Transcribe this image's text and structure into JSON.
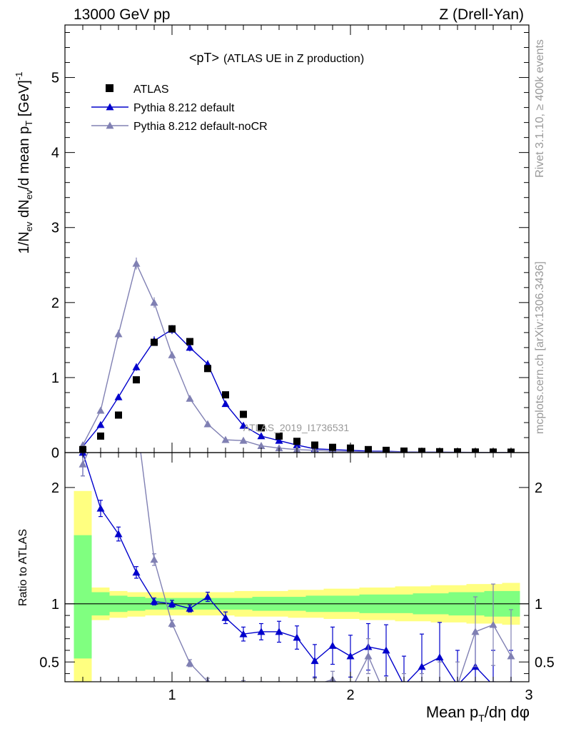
{
  "header": {
    "left": "13000 GeV pp",
    "right": "Z (Drell-Yan)"
  },
  "side_labels": {
    "rivet": "Rivet 3.1.10, ≥ 400k events",
    "mcplots": "mcplots.cern.ch [arXiv:1306.3436]"
  },
  "chart_data": {
    "type": "scatter",
    "title": "<pT>",
    "subtitle": "(ATLAS UE in Z production)",
    "watermark": "ATLAS_2019_I1736531",
    "xlabel": "Mean p_T/dη dφ",
    "ylabel": "1/N_ev dN_ev/d mean p_T [GeV]^-1",
    "ratio_ylabel": "Ratio to ATLAS",
    "xlim": [
      0.4,
      3.0
    ],
    "ylim": [
      0,
      5.7
    ],
    "ratio_ylim": [
      0.33,
      2.3
    ],
    "x_ticks": [
      {
        "value": 1,
        "label": "1"
      },
      {
        "value": 2,
        "label": "2"
      },
      {
        "value": 3,
        "label": "3"
      }
    ],
    "y_ticks": [
      {
        "value": 0,
        "label": "0"
      },
      {
        "value": 1,
        "label": "1"
      },
      {
        "value": 2,
        "label": "2"
      },
      {
        "value": 3,
        "label": "3"
      },
      {
        "value": 4,
        "label": "4"
      },
      {
        "value": 5,
        "label": "5"
      }
    ],
    "ratio_ticks": [
      {
        "value": 0.5,
        "label": "0.5"
      },
      {
        "value": 1,
        "label": "1"
      },
      {
        "value": 2,
        "label": "2"
      }
    ],
    "legend": [
      {
        "name": "ATLAS",
        "color": "#000000",
        "marker": "square"
      },
      {
        "name": "Pythia 8.212 default",
        "color": "#0000cc",
        "marker": "triangle"
      },
      {
        "name": "Pythia 8.212 default-noCR",
        "color": "#8080b3",
        "marker": "triangle"
      }
    ],
    "x": [
      0.5,
      0.6,
      0.7,
      0.8,
      0.9,
      1.0,
      1.1,
      1.2,
      1.3,
      1.4,
      1.5,
      1.6,
      1.7,
      1.8,
      1.9,
      2.0,
      2.1,
      2.2,
      2.3,
      2.4,
      2.5,
      2.6,
      2.7,
      2.8,
      2.9
    ],
    "bin_edges": [
      0.45,
      0.55,
      0.65,
      0.75,
      0.85,
      0.95,
      1.05,
      1.15,
      1.25,
      1.35,
      1.45,
      1.55,
      1.65,
      1.75,
      1.85,
      1.95,
      2.05,
      2.15,
      2.25,
      2.35,
      2.45,
      2.55,
      2.65,
      2.75,
      2.85,
      2.95
    ],
    "data": {
      "name": "ATLAS",
      "values": [
        0.04,
        0.22,
        0.5,
        0.97,
        1.47,
        1.65,
        1.48,
        1.12,
        0.77,
        0.51,
        0.33,
        0.22,
        0.15,
        0.1,
        0.07,
        0.06,
        0.04,
        0.03,
        0.02,
        0.015,
        0.012,
        0.01,
        0.008,
        0.007,
        0.006
      ]
    },
    "series": [
      {
        "name": "Pythia 8.212 default",
        "color": "#0000cc",
        "values": [
          0.08,
          0.37,
          0.74,
          1.14,
          1.49,
          1.64,
          1.4,
          1.18,
          0.65,
          0.36,
          0.22,
          0.16,
          0.1,
          0.05,
          0.04,
          0.03,
          0.02,
          0.018,
          0.01,
          0.008,
          0.006,
          0.004,
          0.003,
          0.002,
          0.002
        ],
        "errors": [
          0.01,
          0.03,
          0.04,
          0.05,
          0.06,
          0.06,
          0.05,
          0.05,
          0.04,
          0.03,
          0.02,
          0.02,
          0.02,
          0.01,
          0.01,
          0.01,
          0.01,
          0.01,
          0.01,
          0.005,
          0.005,
          0.004,
          0.003,
          0.002,
          0.002
        ],
        "ratio": [
          2.3,
          1.82,
          1.6,
          1.27,
          1.02,
          1.0,
          0.96,
          1.06,
          0.88,
          0.74,
          0.76,
          0.76,
          0.71,
          0.51,
          0.64,
          0.55,
          0.63,
          0.6,
          0.3,
          0.46,
          0.54,
          0.3,
          0.46,
          0.3,
          0.3
        ],
        "ratio_errors": [
          0.2,
          0.07,
          0.06,
          0.05,
          0.03,
          0.03,
          0.03,
          0.04,
          0.05,
          0.06,
          0.07,
          0.09,
          0.1,
          0.14,
          0.16,
          0.18,
          0.2,
          0.22,
          0.25,
          0.28,
          0.3,
          0.3,
          0.3,
          0.3,
          0.3
        ]
      },
      {
        "name": "Pythia 8.212 default-noCR",
        "color": "#8080b3",
        "values": [
          0.1,
          0.56,
          1.58,
          2.52,
          2.0,
          1.3,
          0.72,
          0.38,
          0.17,
          0.16,
          0.09,
          0.06,
          0.04,
          0.03,
          0.02,
          0.015,
          0.01,
          0.01,
          0.008,
          0.006,
          0.005,
          0.004,
          0.003,
          0.003,
          0.002
        ],
        "errors": [
          0.01,
          0.03,
          0.06,
          0.08,
          0.07,
          0.05,
          0.04,
          0.03,
          0.02,
          0.02,
          0.02,
          0.01,
          0.01,
          0.01,
          0.01,
          0.01,
          0.01,
          0.01,
          0.005,
          0.005,
          0.004,
          0.003,
          0.003,
          0.003,
          0.002
        ],
        "ratio": [
          2.2,
          2.55,
          3.1,
          2.6,
          1.38,
          0.83,
          0.49,
          0.33,
          0.22,
          0.31,
          0.27,
          0.27,
          0.27,
          0.3,
          0.35,
          0.25,
          0.55,
          0.2,
          0.3,
          0.3,
          0.3,
          0.3,
          0.76,
          0.82,
          0.55
        ],
        "ratio_errors": [
          0.1,
          0.1,
          0.1,
          0.09,
          0.05,
          0.03,
          0.03,
          0.03,
          0.03,
          0.03,
          0.03,
          0.04,
          0.05,
          0.06,
          0.07,
          0.08,
          0.15,
          0.1,
          0.1,
          0.1,
          0.2,
          0.2,
          0.3,
          0.35,
          0.4
        ]
      }
    ],
    "bands": {
      "green_lo": [
        0.53,
        0.9,
        0.93,
        0.94,
        0.95,
        0.95,
        0.95,
        0.95,
        0.95,
        0.95,
        0.94,
        0.94,
        0.94,
        0.93,
        0.93,
        0.93,
        0.92,
        0.92,
        0.92,
        0.91,
        0.91,
        0.9,
        0.9,
        0.89,
        0.89
      ],
      "green_hi": [
        1.59,
        1.1,
        1.07,
        1.06,
        1.05,
        1.05,
        1.05,
        1.05,
        1.05,
        1.05,
        1.06,
        1.06,
        1.06,
        1.07,
        1.07,
        1.07,
        1.08,
        1.08,
        1.08,
        1.09,
        1.09,
        1.1,
        1.1,
        1.11,
        1.11
      ],
      "yellow_lo": [
        0.33,
        0.86,
        0.88,
        0.89,
        0.9,
        0.9,
        0.9,
        0.9,
        0.9,
        0.89,
        0.89,
        0.89,
        0.88,
        0.88,
        0.87,
        0.87,
        0.86,
        0.86,
        0.85,
        0.85,
        0.84,
        0.84,
        0.83,
        0.83,
        0.82
      ],
      "yellow_hi": [
        1.97,
        1.14,
        1.11,
        1.1,
        1.1,
        1.1,
        1.1,
        1.1,
        1.1,
        1.11,
        1.11,
        1.11,
        1.12,
        1.12,
        1.13,
        1.13,
        1.14,
        1.14,
        1.15,
        1.15,
        1.16,
        1.16,
        1.17,
        1.17,
        1.18
      ]
    }
  }
}
